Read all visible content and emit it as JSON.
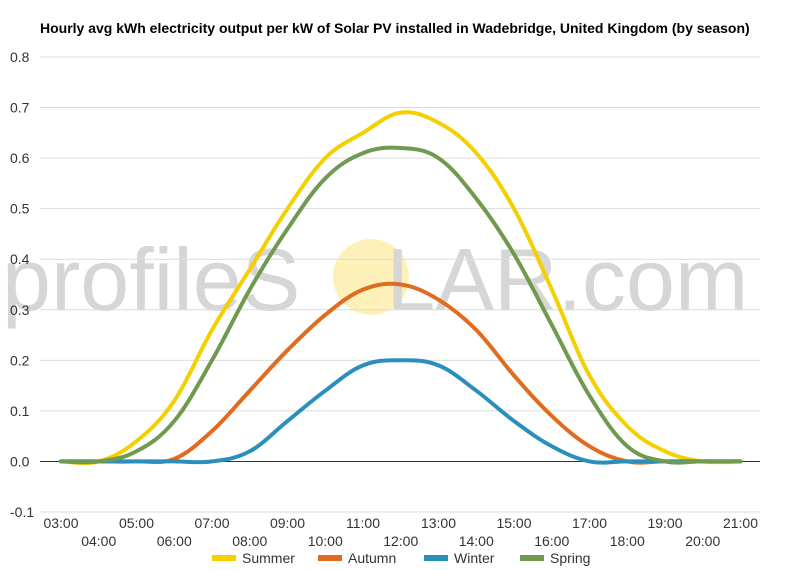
{
  "chart_data": {
    "type": "line",
    "title": "Hourly avg kWh electricity output per kW of Solar PV installed in Wadebridge, United Kingdom (by season)",
    "xlabel": "",
    "ylabel": "",
    "ylim": [
      -0.1,
      0.8
    ],
    "yticks": [
      "-0.1",
      "0.0",
      "0.1",
      "0.2",
      "0.3",
      "0.4",
      "0.5",
      "0.6",
      "0.7",
      "0.8"
    ],
    "categories": [
      "03:00",
      "04:00",
      "05:00",
      "06:00",
      "07:00",
      "08:00",
      "09:00",
      "10:00",
      "11:00",
      "12:00",
      "13:00",
      "14:00",
      "15:00",
      "16:00",
      "17:00",
      "18:00",
      "19:00",
      "20:00",
      "21:00"
    ],
    "grid": true,
    "legend_position": "bottom",
    "series": [
      {
        "name": "Summer",
        "color": "#f5d000",
        "values": [
          0,
          0,
          0.04,
          0.12,
          0.26,
          0.38,
          0.5,
          0.6,
          0.65,
          0.69,
          0.67,
          0.61,
          0.5,
          0.34,
          0.17,
          0.07,
          0.02,
          0,
          0
        ]
      },
      {
        "name": "Autumn",
        "color": "#e06c1f",
        "values": [
          0,
          0,
          0,
          0.005,
          0.06,
          0.14,
          0.22,
          0.29,
          0.34,
          0.35,
          0.32,
          0.26,
          0.17,
          0.09,
          0.03,
          0,
          0,
          0,
          0
        ]
      },
      {
        "name": "Winter",
        "color": "#2b8fbe",
        "values": [
          0,
          0,
          0,
          0,
          0,
          0.02,
          0.08,
          0.14,
          0.19,
          0.2,
          0.19,
          0.14,
          0.08,
          0.03,
          0,
          0,
          0,
          0,
          0
        ]
      },
      {
        "name": "Spring",
        "color": "#6f9a4f",
        "values": [
          0,
          0,
          0.02,
          0.08,
          0.2,
          0.34,
          0.46,
          0.56,
          0.61,
          0.62,
          0.6,
          0.52,
          0.41,
          0.27,
          0.13,
          0.03,
          0,
          0,
          0
        ]
      }
    ]
  },
  "watermark": {
    "part1": "profileS",
    "part2": "LAR.com",
    "sun_color": "#fdf0b8"
  }
}
